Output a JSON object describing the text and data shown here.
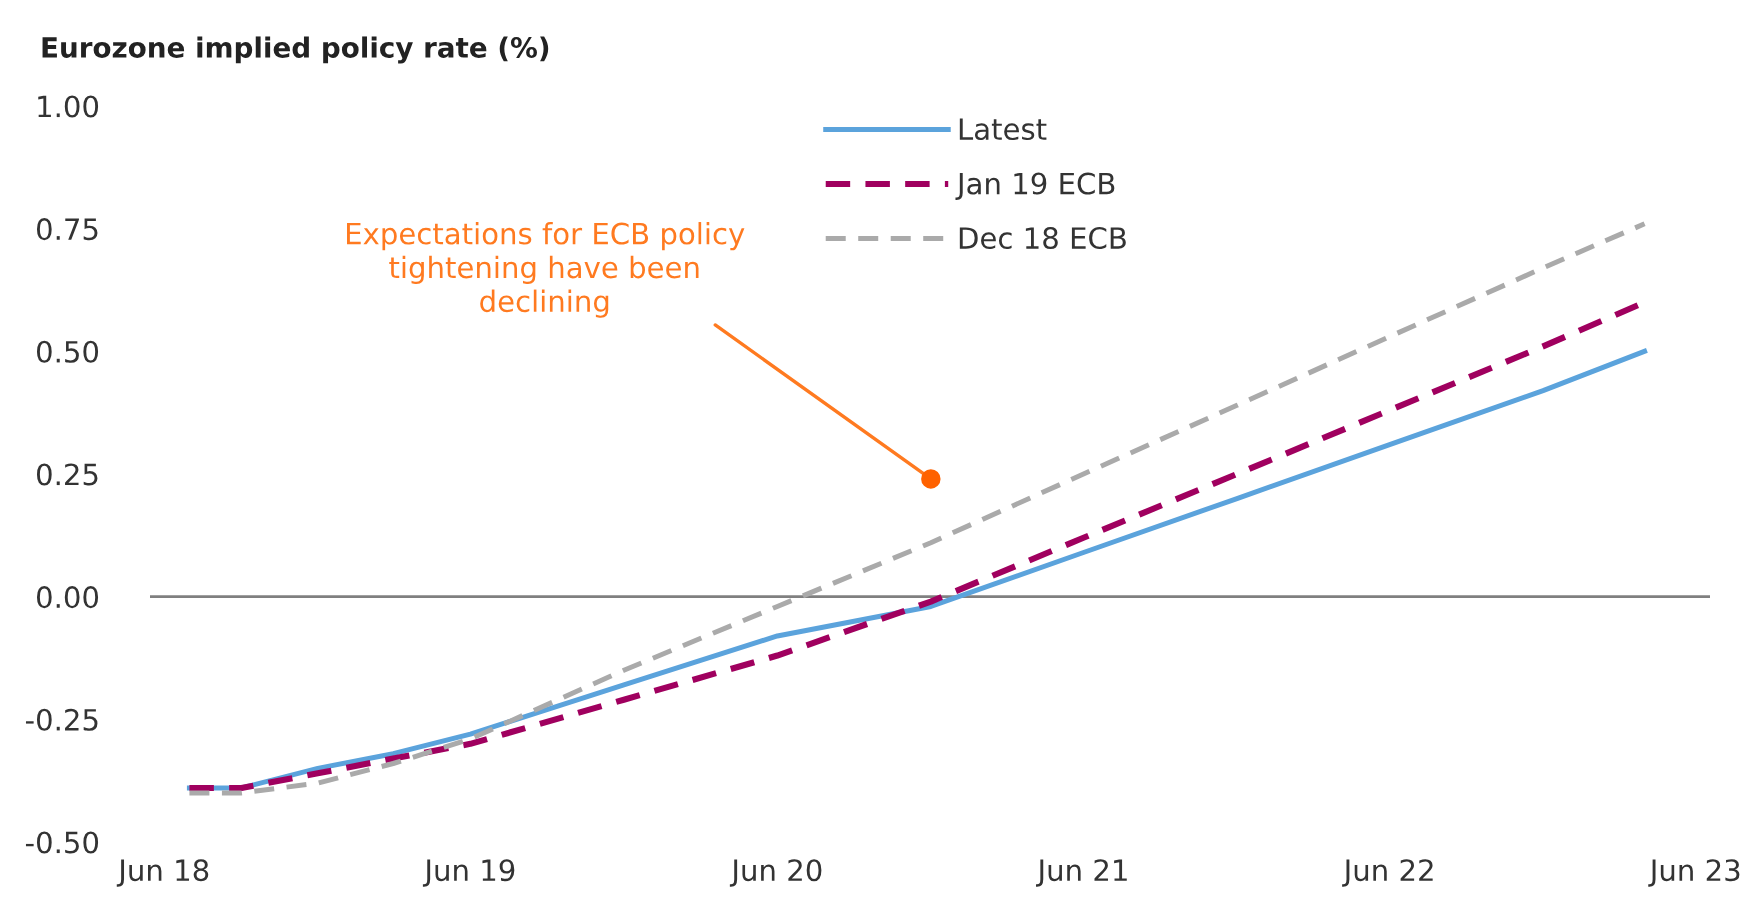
{
  "chart_data": {
    "type": "line",
    "title": "Eurozone implied policy rate (%)",
    "x": [
      "2018-07",
      "2018-09",
      "2018-12",
      "2019-03",
      "2019-06",
      "2019-12",
      "2020-06",
      "2020-12",
      "2021-06",
      "2021-12",
      "2022-06",
      "2022-12",
      "2023-04"
    ],
    "series": [
      {
        "name": "Latest",
        "color": "#5ba3dc",
        "line_style": "solid",
        "values": [
          -0.39,
          -0.39,
          -0.35,
          -0.32,
          -0.28,
          -0.18,
          -0.08,
          -0.02,
          0.09,
          0.2,
          0.31,
          0.42,
          0.5
        ]
      },
      {
        "name": "Jan 19 ECB",
        "color": "#a0005f",
        "line_style": "dashed",
        "values": [
          -0.39,
          -0.39,
          -0.36,
          -0.33,
          -0.3,
          -0.21,
          -0.12,
          -0.01,
          0.12,
          0.25,
          0.38,
          0.51,
          0.6
        ]
      },
      {
        "name": "Dec 18 ECB",
        "color": "#aaaaaa",
        "line_style": "dashed",
        "values": [
          -0.4,
          -0.4,
          -0.38,
          -0.34,
          -0.29,
          -0.15,
          -0.02,
          0.11,
          0.25,
          0.39,
          0.53,
          0.67,
          0.76
        ]
      }
    ],
    "xlim": [
      "2018-05-15",
      "2023-06-18"
    ],
    "xticks": [
      {
        "value": "2018-06",
        "label": "Jun 18"
      },
      {
        "value": "2019-06",
        "label": "Jun 19"
      },
      {
        "value": "2020-06",
        "label": "Jun 20"
      },
      {
        "value": "2021-06",
        "label": "Jun 21"
      },
      {
        "value": "2022-06",
        "label": "Jun 22"
      },
      {
        "value": "2023-06",
        "label": "Jun 23"
      }
    ],
    "ylim": [
      -0.5,
      1.0
    ],
    "yticks": [
      {
        "value": -0.5,
        "label": "-0.50"
      },
      {
        "value": -0.25,
        "label": "-0.25"
      },
      {
        "value": 0,
        "label": "0.00"
      },
      {
        "value": 0.25,
        "label": "0.25"
      },
      {
        "value": 0.5,
        "label": "0.50"
      },
      {
        "value": 0.75,
        "label": "0.75"
      },
      {
        "value": 1.0,
        "label": "1.00"
      }
    ],
    "ref_lines": [
      {
        "axis": "y",
        "value": 0,
        "color": "#808080"
      }
    ],
    "annotations": [
      {
        "text": "Expectations for ECB policy\ntightening have been\ndeclining",
        "x": "2020-12",
        "y": 0.24
      }
    ],
    "grid": false,
    "legend": "top",
    "marker": "none"
  }
}
